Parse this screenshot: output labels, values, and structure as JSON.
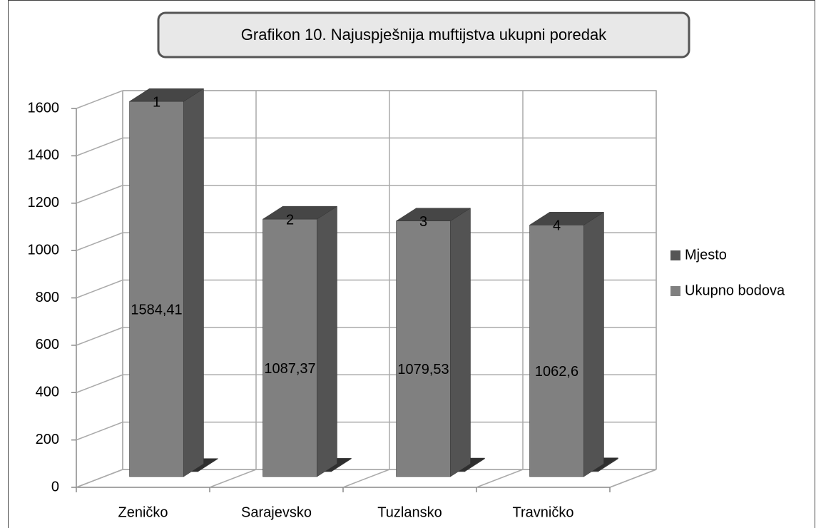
{
  "chart_data": {
    "type": "bar3d",
    "title": "Grafikon 10. Najuspješnija muftijstva ukupni poredak",
    "categories": [
      "Zeničko",
      "Sarajevsko",
      "Tuzlansko",
      "Travničko"
    ],
    "series": [
      {
        "name": "Mjesto",
        "color": "#555555",
        "values": [
          1,
          2,
          3,
          4
        ]
      },
      {
        "name": "Ukupno bodova",
        "color": "#808080",
        "values": [
          1584.41,
          1087.37,
          1079.53,
          1062.6
        ],
        "value_labels": [
          "1584,41",
          "1087,37",
          "1079,53",
          "1062,6"
        ]
      }
    ],
    "ylim": [
      0,
      1600
    ],
    "yticks": [
      0,
      200,
      400,
      600,
      800,
      1000,
      1200,
      1400,
      1600
    ],
    "grid": true,
    "legend": "right"
  }
}
